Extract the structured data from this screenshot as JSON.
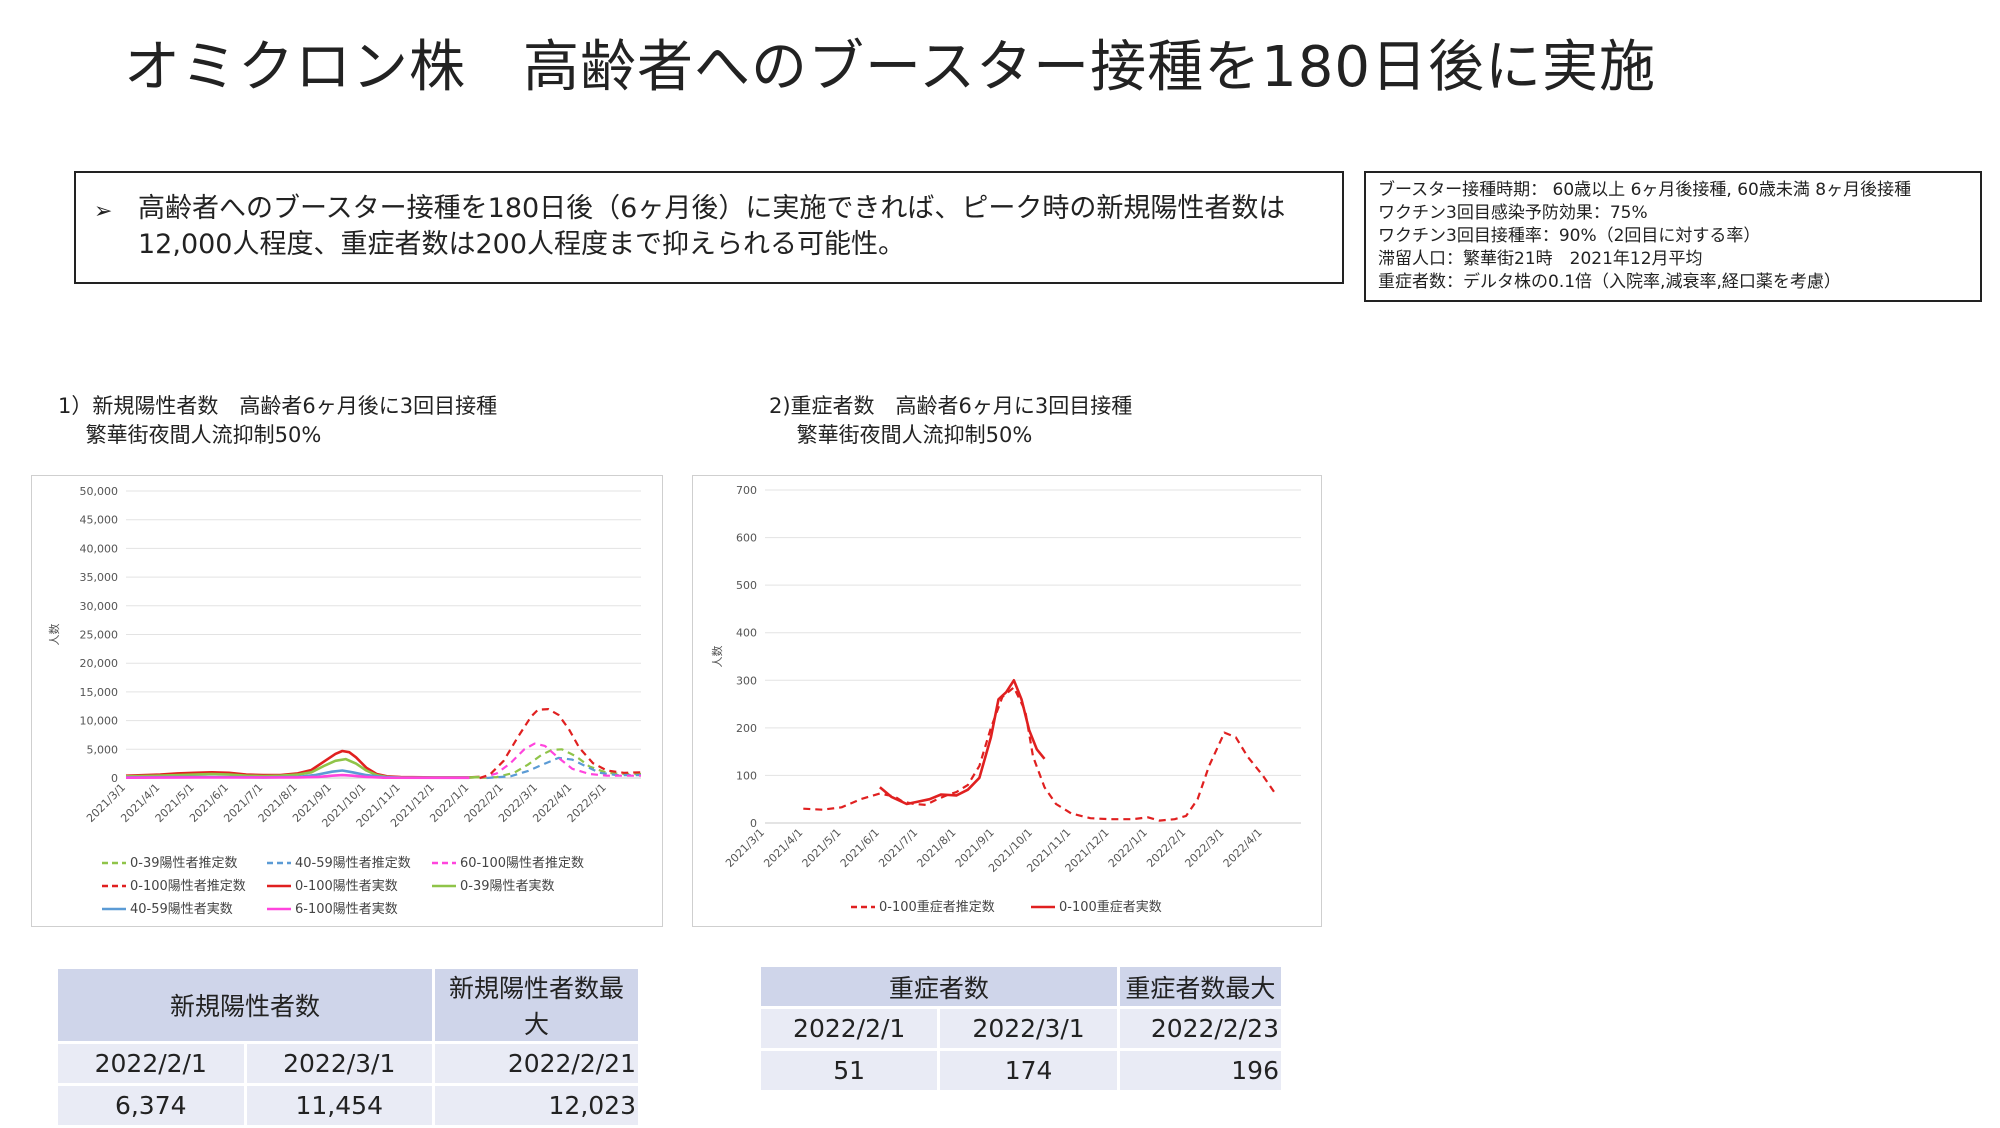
{
  "title": "オミクロン株　高齢者へのブースター接種を180日後に実施",
  "summary": {
    "bullet": "➢",
    "text": "高齢者へのブースター接種を180日後（6ヶ月後）に実施できれば、ピーク時の新規陽性者数は12,000人程度、重症者数は200人程度まで抑えられる可能性。"
  },
  "conditions": [
    "ブースター接種時期： 60歳以上 6ヶ月後接種, 60歳未満 8ヶ月後接種",
    "ワクチン3回目感染予防効果：75%",
    "ワクチン3回目接種率：90%（2回目に対する率）",
    "滞留人口：繁華街21時　2021年12月平均",
    "重症者数：デルタ株の0.1倍（入院率,減衰率,経口薬を考慮）"
  ],
  "chart1_title": [
    "1）新規陽性者数　高齢者6ヶ月後に3回目接種",
    "　 繁華街夜間人流抑制50%"
  ],
  "chart2_title": [
    "2)重症者数　高齢者6ヶ月に3回目接種",
    "　 繁華街夜間人流抑制50%"
  ],
  "chart_data": [
    {
      "type": "line",
      "ylabel": "人数",
      "ylim": [
        0,
        50000
      ],
      "yticks": [
        "0",
        "5,000",
        "10,000",
        "15,000",
        "20,000",
        "25,000",
        "30,000",
        "35,000",
        "40,000",
        "45,000",
        "50,000"
      ],
      "xticks": [
        "2021/3/1",
        "2021/4/1",
        "2021/5/1",
        "2021/6/1",
        "2021/7/1",
        "2021/8/1",
        "2021/9/1",
        "2021/10/1",
        "2021/11/1",
        "2021/12/1",
        "2022/1/1",
        "2022/2/1",
        "2022/3/1",
        "2022/4/1",
        "2022/5/1"
      ],
      "xlim": [
        0,
        15
      ],
      "grid": true,
      "legend": "bottom",
      "series": [
        {
          "name": "0-39陽性者推定数",
          "color": "#8fc449",
          "dash": true,
          "x": [
            10.3,
            10.8,
            11.3,
            11.7,
            12.1,
            12.4,
            12.7,
            13.1,
            13.5,
            14.0,
            14.5,
            15.0
          ],
          "y": [
            0,
            150,
            900,
            2300,
            4000,
            4900,
            5000,
            3800,
            2000,
            900,
            700,
            700
          ]
        },
        {
          "name": "40-59陽性者推定数",
          "color": "#5b9bd5",
          "dash": true,
          "x": [
            10.5,
            11.2,
            11.7,
            12.2,
            12.6,
            13.0,
            13.4,
            13.8,
            14.3,
            15.0
          ],
          "y": [
            0,
            300,
            1200,
            2500,
            3500,
            3200,
            2000,
            900,
            500,
            500
          ]
        },
        {
          "name": "60-100陽性者推定数",
          "color": "#ff44dd",
          "dash": true,
          "x": [
            10.3,
            10.8,
            11.2,
            11.6,
            11.9,
            12.2,
            12.6,
            13.0,
            13.5,
            14.0,
            15.0
          ],
          "y": [
            0,
            800,
            2600,
            5000,
            6000,
            5600,
            3500,
            1600,
            700,
            400,
            400
          ]
        },
        {
          "name": "0-100陽性者推定数",
          "color": "#e02020",
          "dash": true,
          "x": [
            10.3,
            10.6,
            11.0,
            11.4,
            11.8,
            12.0,
            12.3,
            12.6,
            12.9,
            13.2,
            13.6,
            14.0,
            14.5,
            15.0
          ],
          "y": [
            0,
            600,
            3000,
            7000,
            10700,
            11900,
            12000,
            11000,
            8500,
            5300,
            2600,
            1300,
            900,
            1000
          ]
        },
        {
          "name": "0-100陽性者実数",
          "color": "#e02020",
          "dash": false,
          "x": [
            0,
            1,
            1.5,
            2,
            2.5,
            3,
            3.5,
            4,
            4.5,
            5,
            5.4,
            5.8,
            6.1,
            6.3,
            6.5,
            6.7,
            7.0,
            7.3,
            7.6,
            8.0,
            9.0,
            10.0,
            10.3
          ],
          "y": [
            400,
            600,
            800,
            900,
            1000,
            900,
            600,
            500,
            500,
            800,
            1400,
            3000,
            4200,
            4700,
            4500,
            3600,
            1800,
            700,
            300,
            150,
            100,
            100,
            200
          ]
        },
        {
          "name": "0-39陽性者実数",
          "color": "#8fc449",
          "dash": false,
          "x": [
            0,
            1,
            2,
            2.5,
            3,
            3.5,
            4,
            4.5,
            5,
            5.4,
            5.8,
            6.1,
            6.4,
            6.7,
            7.0,
            7.3,
            7.6,
            8.0,
            9.0,
            10.0,
            10.3
          ],
          "y": [
            300,
            400,
            600,
            700,
            600,
            400,
            350,
            400,
            600,
            1000,
            2200,
            3000,
            3300,
            2500,
            1300,
            500,
            200,
            100,
            80,
            80,
            150
          ]
        },
        {
          "name": "40-59陽性者実数",
          "color": "#5b9bd5",
          "dash": false,
          "x": [
            0,
            2,
            4,
            5,
            5.5,
            6.0,
            6.3,
            6.6,
            7.0,
            7.5,
            8.0,
            10.0
          ],
          "y": [
            100,
            200,
            100,
            200,
            500,
            1100,
            1300,
            1000,
            500,
            150,
            50,
            50
          ]
        },
        {
          "name": "6-100陽性者実数",
          "color": "#ff44dd",
          "dash": false,
          "x": [
            0,
            2,
            4,
            5,
            5.6,
            6.0,
            6.3,
            6.6,
            7.0,
            7.5,
            10.0
          ],
          "y": [
            50,
            100,
            80,
            100,
            200,
            400,
            500,
            400,
            200,
            50,
            30
          ]
        }
      ]
    },
    {
      "type": "line",
      "ylabel": "人数",
      "ylim": [
        0,
        700
      ],
      "yticks": [
        "0",
        "100",
        "200",
        "300",
        "400",
        "500",
        "600",
        "700"
      ],
      "xticks": [
        "2021/3/1",
        "2021/4/1",
        "2021/5/1",
        "2021/6/1",
        "2021/7/1",
        "2021/8/1",
        "2021/9/1",
        "2021/10/1",
        "2021/11/1",
        "2021/12/1",
        "2022/1/1",
        "2022/2/1",
        "2022/3/1",
        "2022/4/1"
      ],
      "xlim": [
        0,
        14
      ],
      "grid": true,
      "legend": "bottom",
      "series": [
        {
          "name": "0-100重症者推定数",
          "color": "#e02020",
          "dash": true,
          "x": [
            1.0,
            1.5,
            2.0,
            2.5,
            3.0,
            3.4,
            3.6,
            3.9,
            4.2,
            4.5,
            4.8,
            5.0,
            5.3,
            5.6,
            5.9,
            6.2,
            6.5,
            6.8,
            7.0,
            7.3,
            7.6,
            8.0,
            8.5,
            9.0,
            9.6,
            10.0,
            10.3,
            10.7,
            11.0,
            11.3,
            11.6,
            12.0,
            12.3,
            12.6,
            13.0,
            13.3
          ],
          "y": [
            30,
            28,
            33,
            50,
            62,
            55,
            45,
            40,
            38,
            50,
            60,
            65,
            80,
            120,
            200,
            265,
            285,
            235,
            140,
            75,
            40,
            20,
            10,
            8,
            8,
            12,
            5,
            8,
            15,
            50,
            120,
            190,
            180,
            140,
            100,
            65
          ]
        },
        {
          "name": "0-100重症者実数",
          "color": "#e02020",
          "dash": false,
          "x": [
            3.0,
            3.3,
            3.7,
            4.0,
            4.3,
            4.6,
            5.0,
            5.3,
            5.6,
            5.9,
            6.1,
            6.3,
            6.5,
            6.7,
            6.9,
            7.1,
            7.3
          ],
          "y": [
            75,
            55,
            40,
            45,
            50,
            60,
            58,
            70,
            95,
            180,
            260,
            275,
            300,
            260,
            195,
            155,
            135
          ]
        }
      ]
    }
  ],
  "table1": {
    "header": "新規陽性者数",
    "header_max": "新規陽性者数最大",
    "dates": [
      "2022/2/1",
      "2022/3/1"
    ],
    "max_date": "2022/2/21",
    "values": [
      "6,374",
      "11,454"
    ],
    "max_value": "12,023"
  },
  "table2": {
    "header": "重症者数",
    "header_max": "重症者数最大",
    "dates": [
      "2022/2/1",
      "2022/3/1"
    ],
    "max_date": "2022/2/23",
    "values": [
      "51",
      "174"
    ],
    "max_value": "196"
  }
}
